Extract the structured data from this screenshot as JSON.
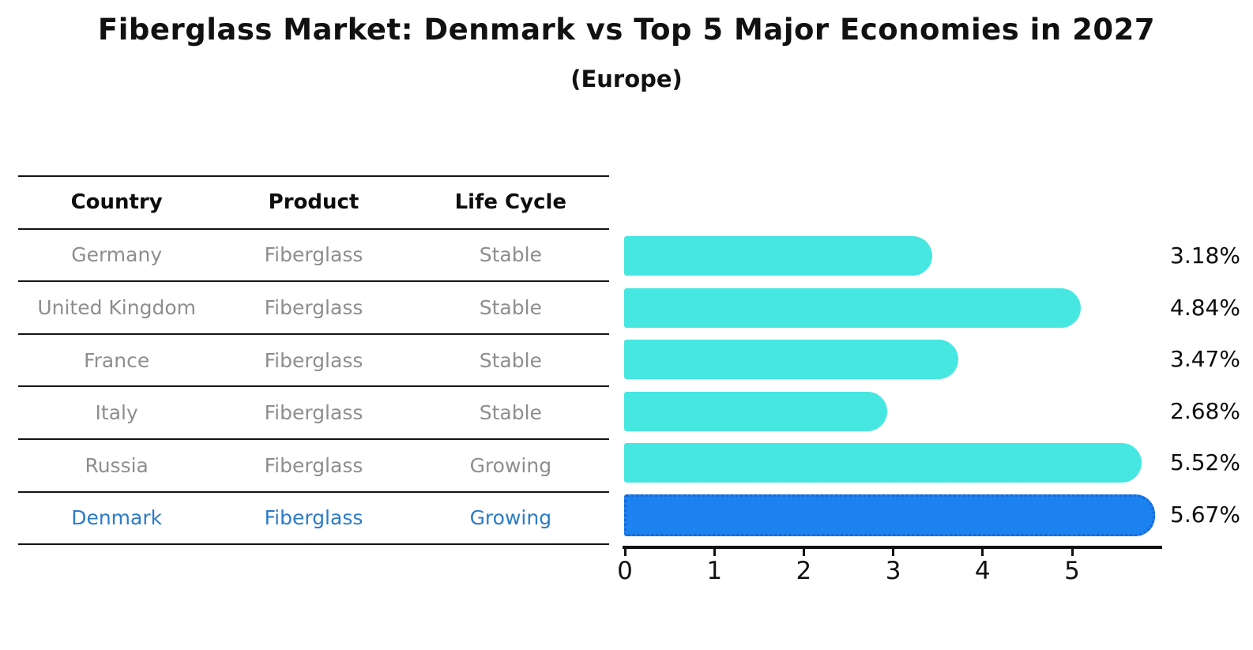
{
  "header": {
    "title": "Fiberglass Market: Denmark vs Top 5 Major Economies in 2027",
    "subtitle": "(Europe)"
  },
  "table": {
    "headers": [
      "Country",
      "Product",
      "Life Cycle"
    ],
    "rows": [
      {
        "country": "Germany",
        "product": "Fiberglass",
        "life_cycle": "Stable",
        "highlighted": false
      },
      {
        "country": "United Kingdom",
        "product": "Fiberglass",
        "life_cycle": "Stable",
        "highlighted": false
      },
      {
        "country": "France",
        "product": "Fiberglass",
        "life_cycle": "Stable",
        "highlighted": false
      },
      {
        "country": "Italy",
        "product": "Fiberglass",
        "life_cycle": "Stable",
        "highlighted": false
      },
      {
        "country": "Russia",
        "product": "Fiberglass",
        "life_cycle": "Growing",
        "highlighted": false
      },
      {
        "country": "Denmark",
        "product": "Fiberglass",
        "life_cycle": "Growing",
        "highlighted": true
      }
    ]
  },
  "chart_data": {
    "type": "bar",
    "orientation": "horizontal",
    "title": "Fiberglass Market: Denmark vs Top 5 Major Economies in 2027",
    "subtitle": "(Europe)",
    "categories": [
      "Germany",
      "United Kingdom",
      "France",
      "Italy",
      "Russia",
      "Denmark"
    ],
    "values": [
      3.18,
      4.84,
      3.47,
      2.68,
      5.52,
      5.67
    ],
    "value_labels": [
      "3.18%",
      "4.84%",
      "3.47%",
      "2.68%",
      "5.52%",
      "5.67%"
    ],
    "xlim": [
      0,
      6
    ],
    "x_ticks": [
      "0",
      "1",
      "2",
      "3",
      "4",
      "5"
    ],
    "grid": false,
    "legend": false,
    "bar_color": "#45e7e0",
    "highlight_color": "#1b82f0",
    "highlight_border_color": "#1468d8",
    "highlight_index": 5,
    "row_text_color": "#8e8e8e",
    "highlight_text_color": "#2c7bc7"
  }
}
